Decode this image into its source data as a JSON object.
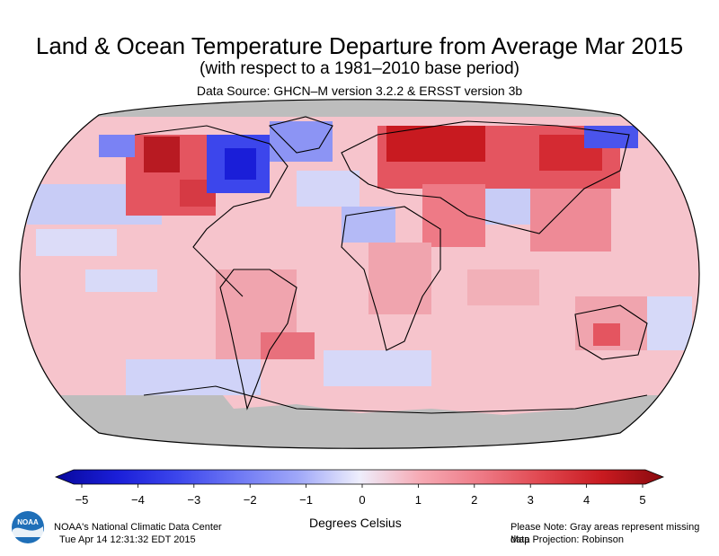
{
  "header": {
    "title": "Land & Ocean Temperature Departure from Average Mar 2015",
    "subtitle": "(with respect to a 1981–2010 base period)",
    "source": "Data Source: GHCN–M version 3.2.2 & ERSST version 3b"
  },
  "colorbar": {
    "label": "Degrees Celsius",
    "ticks": [
      "−5",
      "−4",
      "−3",
      "−2",
      "−1",
      "0",
      "1",
      "2",
      "3",
      "4",
      "5"
    ],
    "min": -5,
    "max": 5,
    "colors": [
      "#08089c",
      "#1a1ed8",
      "#3c46ec",
      "#6e78f4",
      "#a0a8f8",
      "#cfd3fb",
      "#f8d0d6",
      "#f6aab4",
      "#ee7a86",
      "#e0474f",
      "#c81a20",
      "#8a0a0f"
    ],
    "missing_color": "#bdbdbd"
  },
  "footer": {
    "center_name": "NOAA's National Climatic Data Center",
    "timestamp": "Tue Apr 14 12:31:32 EDT 2015",
    "note": "Please Note: Gray areas represent missing data",
    "projection": "Map Projection: Robinson",
    "logo_text": "NOAA"
  },
  "map": {
    "background": "#f6c4cc",
    "regions": [
      {
        "name": "north-america-west-warm",
        "anomaly": 3.5
      },
      {
        "name": "alaska-warm",
        "anomaly": 4.2
      },
      {
        "name": "eastern-canada-cold",
        "anomaly": -4.0
      },
      {
        "name": "greenland-cold",
        "anomaly": -2.0
      },
      {
        "name": "northern-eurasia-warm",
        "anomaly": 4.0
      },
      {
        "name": "siberia-warm",
        "anomaly": 3.2
      },
      {
        "name": "far-east-russia-cold",
        "anomaly": -3.0
      },
      {
        "name": "pacific-cool-band",
        "anomaly": -1.0
      },
      {
        "name": "south-pacific-cool",
        "anomaly": -1.0
      },
      {
        "name": "south-atlantic-warm",
        "anomaly": 1.8
      },
      {
        "name": "indian-ocean-warm",
        "anomaly": 1.2
      },
      {
        "name": "antarctica-missing",
        "anomaly": null
      },
      {
        "name": "arctic-missing",
        "anomaly": null
      }
    ]
  }
}
